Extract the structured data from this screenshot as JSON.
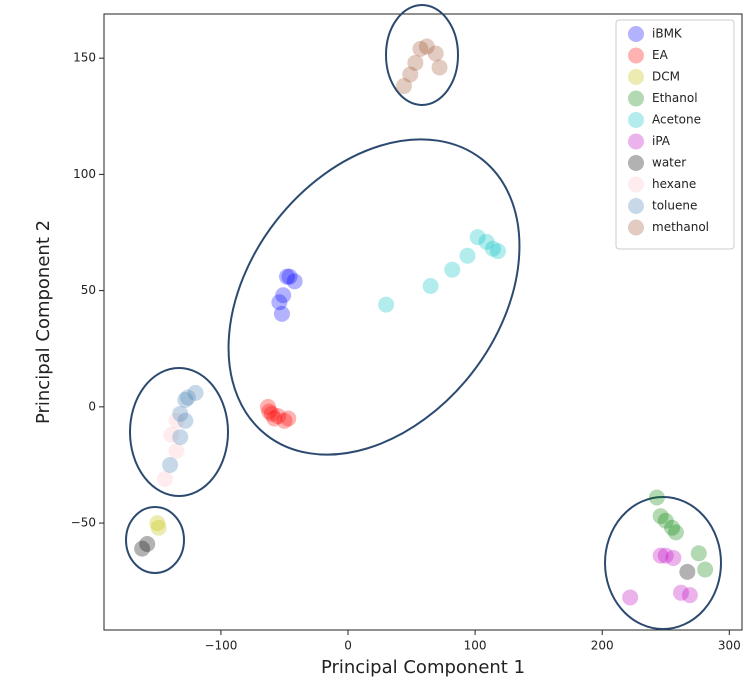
{
  "chart_data": {
    "type": "scatter",
    "x_label": "Principal Component 1",
    "y_label": "Principal Component 2",
    "xlim": [
      -192,
      310
    ],
    "ylim": [
      -96,
      169
    ],
    "xticks": [
      {
        "value": -100,
        "label": "−100"
      },
      0,
      100,
      200,
      300
    ],
    "yticks": [
      {
        "value": -50,
        "label": "−50"
      },
      0,
      50,
      100,
      150
    ],
    "legend": "upper right",
    "series": [
      {
        "name": "iBMK",
        "color": "#0000ff",
        "x": [
          -48,
          -42,
          -51,
          -54,
          -52,
          -46
        ],
        "y": [
          56,
          54,
          48,
          45,
          40,
          56
        ]
      },
      {
        "name": "EA",
        "color": "#ff0000",
        "x": [
          -63,
          -60,
          -58,
          -55,
          -50,
          -47,
          -62
        ],
        "y": [
          0,
          -3,
          -5,
          -4,
          -6,
          -5,
          -2
        ]
      },
      {
        "name": "DCM",
        "color": "#bfbf00",
        "x": [
          -150,
          -149
        ],
        "y": [
          -50,
          -52
        ]
      },
      {
        "name": "Ethanol",
        "color": "#008000",
        "x": [
          243,
          246,
          250,
          255,
          258,
          276,
          281
        ],
        "y": [
          -39,
          -47,
          -49,
          -52,
          -54,
          -63,
          -70
        ]
      },
      {
        "name": "Acetone",
        "color": "#00bfbf",
        "x": [
          30,
          65,
          82,
          94,
          102,
          109,
          114,
          118
        ],
        "y": [
          44,
          52,
          59,
          65,
          73,
          71,
          68,
          67
        ]
      },
      {
        "name": "iPA",
        "color": "#bf00bf",
        "x": [
          222,
          246,
          250,
          256,
          262,
          269
        ],
        "y": [
          -82,
          -64,
          -64,
          -65,
          -80,
          -81
        ]
      },
      {
        "name": "water",
        "color": "#000000",
        "x": [
          -162,
          -158,
          267
        ],
        "y": [
          -61,
          -59,
          -71
        ]
      },
      {
        "name": "hexane",
        "color": "#ffc0cb",
        "x": [
          -135,
          -139,
          -135,
          -144
        ],
        "y": [
          -6,
          -12,
          -19,
          -31
        ]
      },
      {
        "name": "toluene",
        "color": "#4682b4",
        "x": [
          -120,
          -126,
          -128,
          -132,
          -128,
          -132,
          -140
        ],
        "y": [
          6,
          4,
          3,
          -3,
          -6,
          -13,
          -25
        ]
      },
      {
        "name": "methanol",
        "color": "#a0522d",
        "x": [
          44,
          49,
          53,
          57,
          62,
          69,
          72
        ],
        "y": [
          138,
          143,
          148,
          154,
          155,
          152,
          146
        ]
      }
    ]
  }
}
